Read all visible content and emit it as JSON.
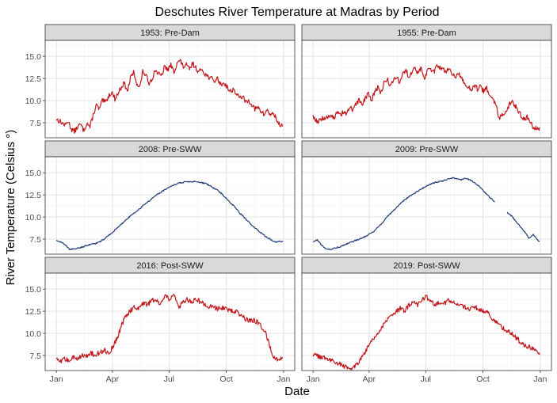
{
  "chart_data": {
    "type": "line",
    "title": "Deschutes River Temperature at Madras by Period",
    "xlabel": "Date",
    "ylabel": "River Temperature (Celsius °)",
    "ylabel_color": "#C0181D",
    "ylim": [
      5.8,
      16.8
    ],
    "y_ticks": [
      "7.5",
      "10.0",
      "12.5",
      "15.0"
    ],
    "y_tick_values": [
      7.5,
      10.0,
      12.5,
      15.0
    ],
    "x_ticks": [
      "Jan",
      "Apr",
      "Jul",
      "Oct",
      "Jan"
    ],
    "x_tick_days": [
      1,
      91,
      182,
      274,
      366
    ],
    "xlim_days": [
      -17,
      384
    ],
    "grid": true,
    "legend": "none",
    "colors": {
      "red": "#C0181D",
      "blue": "#1F3A78",
      "strip": "#D9D9D9"
    },
    "panels": [
      {
        "label": "1953: Pre-Dam",
        "color": "#C0181D",
        "style": "noisy",
        "x": [
          1,
          8,
          15,
          20,
          25,
          30,
          35,
          40,
          45,
          50,
          55,
          60,
          65,
          70,
          75,
          80,
          85,
          90,
          95,
          100,
          105,
          110,
          115,
          120,
          125,
          130,
          135,
          140,
          145,
          150,
          155,
          160,
          165,
          170,
          175,
          180,
          185,
          190,
          195,
          200,
          205,
          210,
          215,
          220,
          225,
          230,
          235,
          240,
          245,
          250,
          255,
          260,
          265,
          270,
          275,
          280,
          285,
          290,
          295,
          300,
          305,
          310,
          315,
          320,
          325,
          330,
          335,
          340,
          345,
          350,
          355,
          360,
          365
        ],
        "y": [
          7.9,
          7.6,
          7.2,
          7.7,
          6.8,
          6.5,
          7.0,
          7.3,
          6.6,
          7.5,
          7.0,
          8.3,
          9.5,
          9.0,
          10.0,
          9.8,
          10.5,
          11.0,
          10.2,
          10.8,
          11.5,
          12.0,
          11.0,
          12.5,
          13.2,
          12.0,
          11.5,
          13.3,
          12.8,
          12.0,
          12.5,
          13.5,
          13.0,
          12.8,
          13.8,
          13.5,
          14.0,
          13.2,
          14.3,
          14.5,
          13.8,
          14.0,
          13.5,
          14.2,
          13.7,
          13.2,
          13.6,
          13.0,
          12.7,
          12.5,
          12.2,
          12.5,
          11.8,
          12.0,
          11.6,
          11.0,
          11.3,
          10.8,
          10.3,
          10.5,
          9.8,
          10.0,
          9.6,
          9.0,
          9.2,
          8.8,
          8.4,
          9.0,
          8.3,
          8.6,
          7.8,
          7.2,
          7.3
        ]
      },
      {
        "label": "1955: Pre-Dam",
        "color": "#C0181D",
        "style": "noisy",
        "x": [
          1,
          5,
          10,
          15,
          20,
          25,
          30,
          35,
          40,
          45,
          50,
          55,
          60,
          65,
          70,
          75,
          80,
          85,
          90,
          95,
          100,
          105,
          110,
          115,
          120,
          125,
          130,
          135,
          140,
          145,
          150,
          155,
          160,
          165,
          170,
          175,
          180,
          185,
          190,
          195,
          200,
          205,
          210,
          215,
          220,
          225,
          230,
          235,
          240,
          245,
          250,
          255,
          260,
          265,
          270,
          275,
          280,
          285,
          290,
          295,
          300,
          305,
          310,
          315,
          320,
          325,
          330,
          335,
          340,
          345,
          350,
          355,
          360,
          365
        ],
        "y": [
          8.3,
          7.8,
          7.6,
          8.0,
          7.8,
          8.2,
          8.5,
          8.0,
          8.7,
          8.3,
          8.8,
          8.4,
          9.3,
          8.8,
          9.6,
          10.0,
          9.4,
          10.3,
          10.8,
          10.0,
          11.0,
          11.5,
          10.8,
          12.0,
          12.5,
          11.6,
          12.2,
          12.8,
          12.0,
          13.0,
          13.5,
          12.6,
          13.3,
          13.7,
          13.0,
          13.8,
          12.5,
          13.4,
          13.6,
          13.2,
          14.0,
          13.8,
          13.5,
          13.2,
          13.7,
          13.0,
          12.8,
          13.2,
          12.4,
          12.0,
          11.5,
          11.2,
          11.8,
          11.3,
          11.6,
          11.0,
          11.4,
          10.4,
          10.0,
          9.5,
          8.0,
          8.3,
          8.6,
          9.3,
          10.0,
          9.5,
          9.0,
          8.3,
          7.8,
          8.2,
          7.5,
          7.0,
          6.9,
          6.8
        ]
      },
      {
        "label": "2008: Pre-SWW",
        "color": "#1F3A78",
        "style": "smooth",
        "x": [
          1,
          8,
          15,
          22,
          29,
          36,
          43,
          50,
          57,
          64,
          71,
          78,
          85,
          92,
          99,
          106,
          113,
          120,
          127,
          134,
          141,
          148,
          155,
          162,
          169,
          176,
          183,
          190,
          197,
          204,
          211,
          218,
          225,
          232,
          239,
          246,
          253,
          260,
          267,
          274,
          281,
          288,
          295,
          302,
          309,
          316,
          323,
          330,
          337,
          344,
          351,
          358,
          365
        ],
        "y": [
          7.3,
          7.2,
          6.9,
          6.3,
          6.4,
          6.5,
          6.6,
          6.8,
          6.9,
          7.0,
          7.2,
          7.5,
          7.9,
          8.3,
          8.8,
          9.2,
          9.7,
          10.1,
          10.5,
          10.9,
          11.3,
          11.7,
          12.1,
          12.5,
          12.8,
          13.1,
          13.4,
          13.6,
          13.8,
          13.9,
          14.0,
          14.0,
          14.0,
          13.9,
          13.8,
          13.6,
          13.3,
          13.0,
          12.6,
          12.1,
          11.6,
          11.1,
          10.5,
          10.0,
          9.5,
          9.0,
          8.6,
          8.2,
          7.8,
          7.5,
          7.2,
          7.2,
          7.3
        ]
      },
      {
        "label": "2009: Pre-SWW",
        "color": "#1F3A78",
        "style": "smooth",
        "gap": [
          293,
          313
        ],
        "x": [
          1,
          8,
          15,
          22,
          29,
          36,
          43,
          50,
          57,
          64,
          71,
          78,
          85,
          92,
          99,
          106,
          113,
          120,
          127,
          134,
          141,
          148,
          155,
          162,
          169,
          176,
          183,
          190,
          197,
          204,
          211,
          218,
          225,
          232,
          239,
          246,
          253,
          260,
          267,
          274,
          281,
          288,
          293,
          313,
          320,
          327,
          334,
          341,
          348,
          355,
          362,
          365
        ],
        "y": [
          7.2,
          7.4,
          6.8,
          6.4,
          6.3,
          6.5,
          6.6,
          6.8,
          7.0,
          7.2,
          7.4,
          7.6,
          7.8,
          8.1,
          8.4,
          8.9,
          9.4,
          10.0,
          10.5,
          11.0,
          11.5,
          11.9,
          12.3,
          12.6,
          12.9,
          13.2,
          13.5,
          13.7,
          13.9,
          14.0,
          14.1,
          14.3,
          14.4,
          14.3,
          14.2,
          14.4,
          14.2,
          13.9,
          13.5,
          13.0,
          12.5,
          12.0,
          11.7,
          10.5,
          10.1,
          9.5,
          8.9,
          8.3,
          7.6,
          8.0,
          7.4,
          7.2
        ]
      },
      {
        "label": "2016: Post-SWW",
        "color": "#C0181D",
        "style": "noisy",
        "x": [
          1,
          8,
          15,
          22,
          29,
          36,
          43,
          50,
          57,
          64,
          71,
          78,
          85,
          92,
          99,
          106,
          113,
          120,
          127,
          134,
          141,
          148,
          155,
          162,
          169,
          176,
          183,
          190,
          197,
          204,
          211,
          218,
          225,
          232,
          239,
          246,
          253,
          260,
          267,
          274,
          281,
          288,
          295,
          302,
          309,
          316,
          323,
          330,
          337,
          344,
          351,
          358,
          365
        ],
        "y": [
          7.0,
          6.8,
          7.1,
          6.9,
          7.3,
          7.2,
          7.6,
          7.4,
          7.8,
          7.5,
          7.9,
          8.1,
          7.8,
          8.5,
          9.5,
          11.0,
          12.0,
          12.6,
          13.0,
          12.8,
          13.5,
          13.2,
          13.8,
          13.6,
          13.3,
          14.2,
          13.8,
          14.4,
          13.0,
          13.4,
          13.8,
          13.5,
          13.9,
          13.6,
          13.3,
          13.0,
          13.0,
          12.8,
          12.9,
          12.8,
          12.6,
          12.5,
          12.2,
          11.8,
          11.4,
          11.5,
          11.3,
          10.8,
          10.0,
          8.5,
          7.3,
          7.0,
          7.1
        ]
      },
      {
        "label": "2019: Post-SWW",
        "color": "#C0181D",
        "style": "noisy",
        "x": [
          1,
          8,
          15,
          22,
          29,
          36,
          43,
          50,
          57,
          64,
          71,
          78,
          85,
          92,
          99,
          106,
          113,
          120,
          127,
          134,
          141,
          148,
          155,
          162,
          169,
          176,
          183,
          190,
          197,
          204,
          211,
          218,
          225,
          232,
          239,
          246,
          253,
          260,
          267,
          274,
          281,
          288,
          295,
          302,
          309,
          316,
          323,
          330,
          337,
          344,
          351,
          358,
          365
        ],
        "y": [
          7.6,
          7.4,
          7.2,
          7.3,
          7.0,
          6.8,
          6.6,
          6.3,
          6.0,
          6.2,
          6.5,
          7.2,
          8.0,
          8.8,
          9.5,
          10.2,
          10.8,
          11.5,
          12.0,
          12.4,
          12.8,
          12.5,
          13.2,
          13.5,
          13.2,
          13.8,
          14.1,
          13.6,
          13.2,
          13.5,
          13.4,
          13.7,
          13.5,
          13.4,
          13.2,
          12.9,
          12.8,
          13.0,
          12.8,
          12.6,
          12.3,
          11.8,
          11.2,
          10.8,
          10.5,
          10.2,
          9.8,
          9.3,
          8.8,
          8.5,
          8.4,
          8.3,
          7.6
        ]
      }
    ]
  }
}
